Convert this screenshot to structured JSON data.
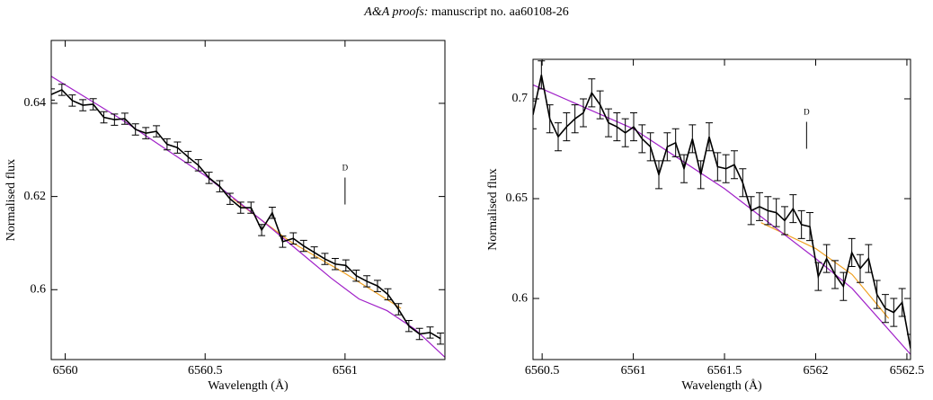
{
  "header": {
    "journal": "A&A proofs:",
    "manuscript": "manuscript no. aa60108-26"
  },
  "chart_data": [
    {
      "type": "line",
      "xlabel": "Wavelength (Å)",
      "ylabel": "Normalised flux",
      "xlim": [
        6559.95,
        6561.357
      ],
      "ylim": [
        0.585,
        0.6535
      ],
      "xticks": [
        6560,
        6560.5,
        6561
      ],
      "yticks": [
        0.6,
        0.62,
        0.64
      ],
      "annotation": {
        "text": "D",
        "x": 6561.0,
        "y": 0.626
      },
      "series": [
        {
          "color": "#000000",
          "error": 0.0012,
          "x": [
            6559.95,
            6559.988,
            6560.025,
            6560.063,
            6560.1,
            6560.138,
            6560.176,
            6560.213,
            6560.251,
            6560.288,
            6560.326,
            6560.364,
            6560.401,
            6560.439,
            6560.476,
            6560.514,
            6560.552,
            6560.589,
            6560.627,
            6560.664,
            6560.702,
            6560.74,
            6560.777,
            6560.815,
            6560.852,
            6560.89,
            6560.928,
            6560.965,
            6561.003,
            6561.04,
            6561.078,
            6561.116,
            6561.153,
            6561.191,
            6561.228,
            6561.266,
            6561.304,
            6561.341
          ],
          "values": [
            0.6419,
            0.6429,
            0.6406,
            0.6396,
            0.6398,
            0.637,
            0.6365,
            0.6367,
            0.6344,
            0.6336,
            0.634,
            0.6312,
            0.6305,
            0.6285,
            0.6267,
            0.624,
            0.6222,
            0.6195,
            0.6176,
            0.6176,
            0.6128,
            0.6165,
            0.6103,
            0.611,
            0.6094,
            0.608,
            0.6066,
            0.6055,
            0.6052,
            0.603,
            0.6018,
            0.6008,
            0.599,
            0.5958,
            0.5922,
            0.5905,
            0.5908,
            0.5895
          ]
        },
        {
          "color": "#a020c8",
          "x": [
            6559.95,
            6560.2,
            6560.5,
            6560.7,
            6560.85,
            6560.95,
            6561.05,
            6561.15,
            6561.25,
            6561.357
          ],
          "values": [
            0.6458,
            0.6366,
            0.6245,
            0.615,
            0.6075,
            0.6025,
            0.598,
            0.5955,
            0.5915,
            0.5855
          ]
        },
        {
          "color": "#f0a020",
          "x": [
            6560.6,
            6560.8,
            6561.0,
            6561.2
          ],
          "values": [
            0.6195,
            0.6105,
            0.6035,
            0.596
          ]
        }
      ]
    },
    {
      "type": "line",
      "xlabel": "Wavelength (Å)",
      "ylabel": "Normalised flux",
      "xlim": [
        6560.45,
        6562.52
      ],
      "ylim": [
        0.5694,
        0.7198
      ],
      "xticks": [
        6560.5,
        6561,
        6561.5,
        6562,
        6562.5
      ],
      "yticks": [
        0.6,
        0.65,
        0.7
      ],
      "annotation": {
        "text": "D",
        "x": 6561.95,
        "y": 0.693
      },
      "series": [
        {
          "color": "#000000",
          "error": 0.007,
          "x": [
            6560.45,
            6560.496,
            6560.542,
            6560.588,
            6560.634,
            6560.68,
            6560.726,
            6560.772,
            6560.818,
            6560.864,
            6560.91,
            6560.956,
            6561.002,
            6561.048,
            6561.094,
            6561.14,
            6561.186,
            6561.232,
            6561.278,
            6561.324,
            6561.37,
            6561.416,
            6561.462,
            6561.508,
            6561.554,
            6561.6,
            6561.646,
            6561.692,
            6561.738,
            6561.784,
            6561.83,
            6561.876,
            6561.922,
            6561.968,
            6562.014,
            6562.06,
            6562.106,
            6562.152,
            6562.198,
            6562.244,
            6562.29,
            6562.336,
            6562.382,
            6562.428,
            6562.474,
            6562.52
          ],
          "values": [
            0.692,
            0.712,
            0.69,
            0.681,
            0.686,
            0.69,
            0.693,
            0.703,
            0.697,
            0.688,
            0.686,
            0.683,
            0.686,
            0.68,
            0.676,
            0.662,
            0.676,
            0.678,
            0.665,
            0.68,
            0.662,
            0.681,
            0.666,
            0.665,
            0.667,
            0.658,
            0.644,
            0.646,
            0.644,
            0.643,
            0.639,
            0.645,
            0.637,
            0.636,
            0.611,
            0.62,
            0.612,
            0.606,
            0.623,
            0.615,
            0.62,
            0.602,
            0.595,
            0.593,
            0.598,
            0.575
          ]
        },
        {
          "color": "#a020c8",
          "x": [
            6560.45,
            6561.0,
            6561.5,
            6562.0,
            6562.2,
            6562.52
          ],
          "values": [
            0.707,
            0.685,
            0.655,
            0.62,
            0.605,
            0.572
          ]
        },
        {
          "color": "#f0a020",
          "x": [
            6561.7,
            6562.0,
            6562.2,
            6562.4
          ],
          "values": [
            0.638,
            0.625,
            0.612,
            0.59
          ]
        }
      ]
    }
  ]
}
